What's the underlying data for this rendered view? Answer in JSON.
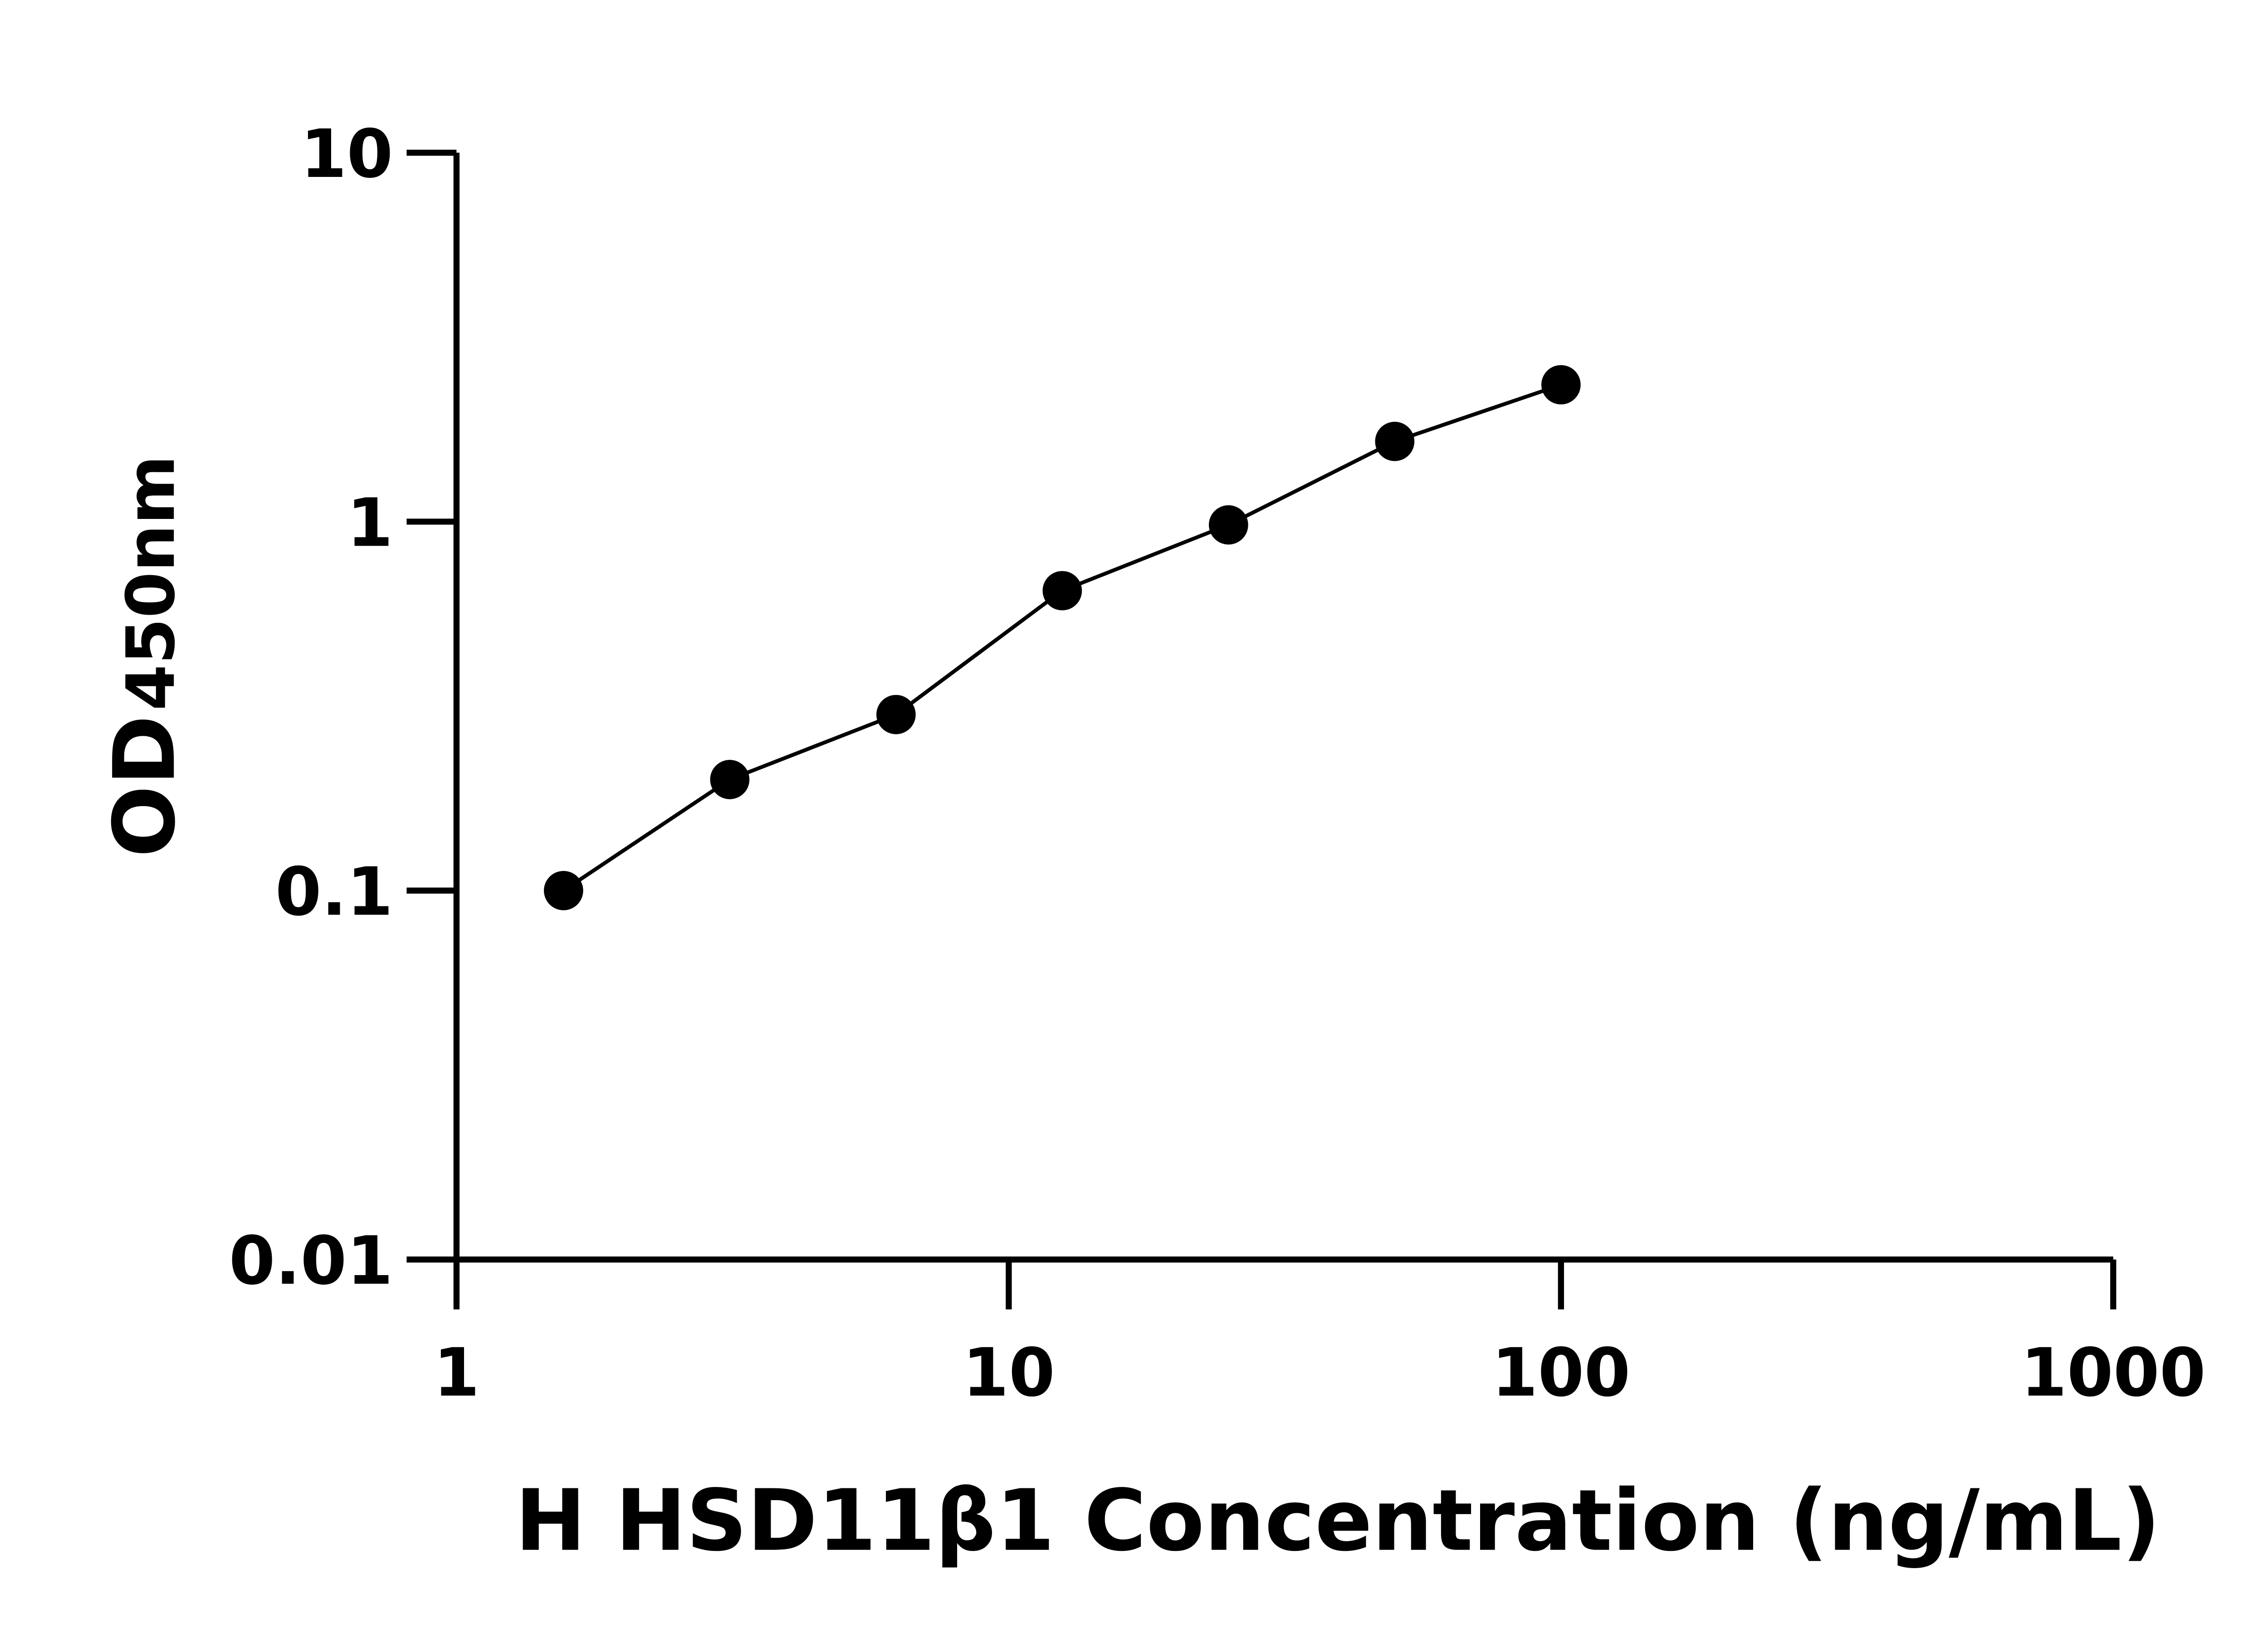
{
  "chart_data": {
    "type": "scatter",
    "title": "",
    "xlabel": "H HSD11β1 Concentration (ng/mL)",
    "ylabel_main": "OD",
    "ylabel_sub": "450nm",
    "x_scale": "log",
    "y_scale": "log",
    "xlim": [
      1,
      1000
    ],
    "ylim": [
      0.01,
      10
    ],
    "x_ticks": [
      "1",
      "10",
      "100",
      "1000"
    ],
    "y_ticks": [
      "0.01",
      "0.1",
      "1",
      "10"
    ],
    "grid": false,
    "fit_line": true,
    "marker_color": "#000000",
    "series": [
      {
        "x": [
          1.5625,
          3.125,
          6.25,
          12.5,
          25,
          50,
          100
        ],
        "y": [
          0.1,
          0.2,
          0.3,
          0.65,
          0.98,
          1.65,
          2.35
        ]
      }
    ]
  }
}
